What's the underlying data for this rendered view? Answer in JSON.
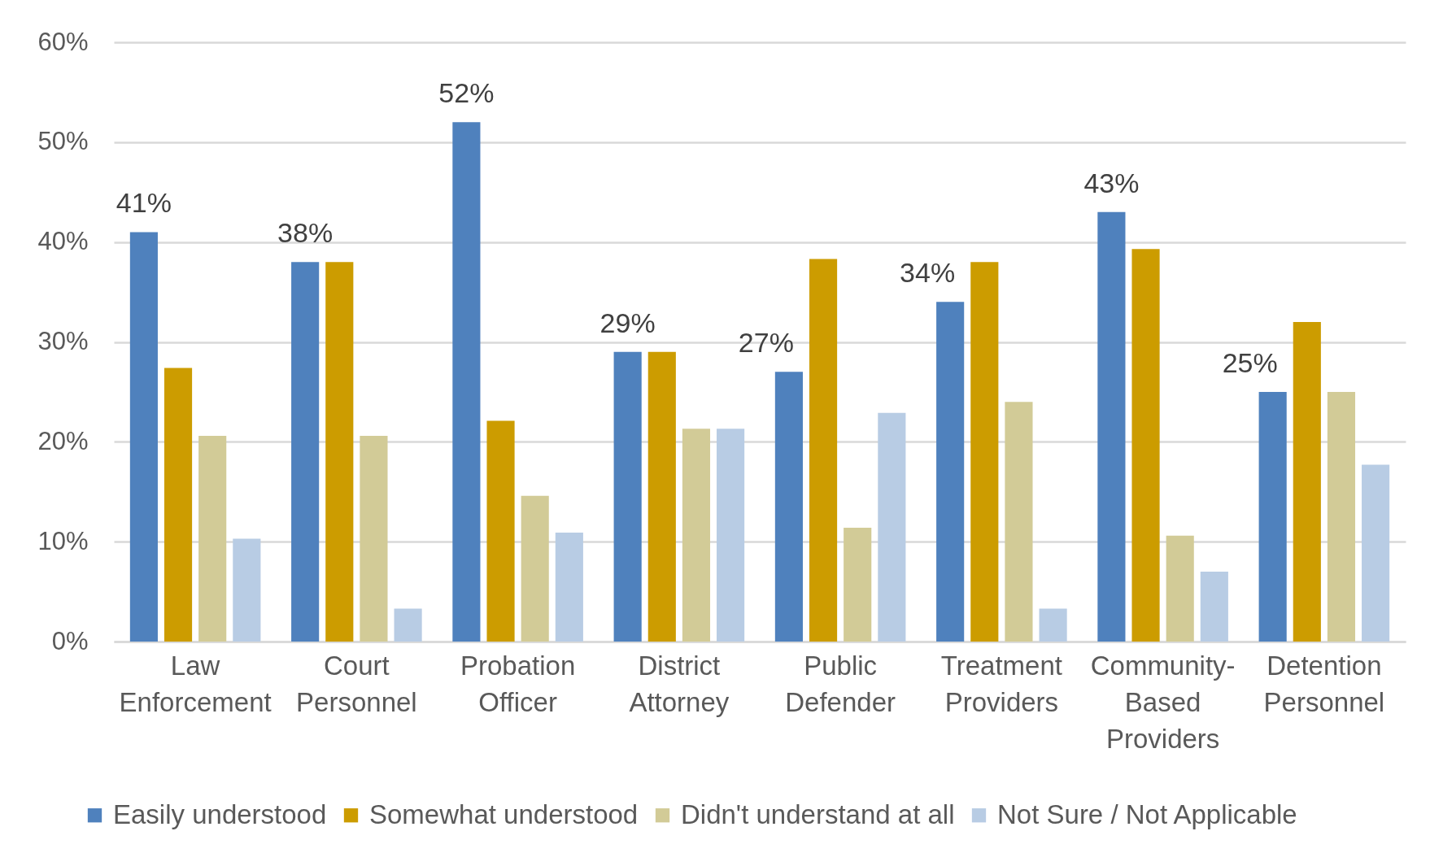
{
  "chart_data": {
    "type": "bar",
    "categories": [
      "Law Enforcement",
      "Court Personnel",
      "Probation Officer",
      "District Attorney",
      "Public Defender",
      "Treatment Providers",
      "Community-Based Providers",
      "Detention Personnel"
    ],
    "series": [
      {
        "name": "Easily understood",
        "color": "#4f81bd",
        "values": [
          41,
          38,
          52,
          29,
          27,
          34,
          43,
          25
        ],
        "value_labels": [
          "41%",
          "38%",
          "52%",
          "29%",
          "27%",
          "34%",
          "43%",
          "25%"
        ]
      },
      {
        "name": "Somewhat understood",
        "color": "#cc9c00",
        "values": [
          27.4,
          38,
          22.1,
          29,
          38.3,
          38,
          39.3,
          32
        ]
      },
      {
        "name": "Didn't understand at all",
        "color": "#d2cb97",
        "values": [
          20.6,
          20.6,
          14.6,
          21.3,
          11.4,
          24,
          10.6,
          25
        ]
      },
      {
        "name": "Not Sure / Not Applicable",
        "color": "#b8cce4",
        "values": [
          10.3,
          3.3,
          10.9,
          21.3,
          22.9,
          3.3,
          7,
          17.7
        ]
      }
    ],
    "ylim": [
      0,
      60
    ],
    "yticks": [
      {
        "value": 0,
        "label": "0%"
      },
      {
        "value": 10,
        "label": "10%"
      },
      {
        "value": 20,
        "label": "20%"
      },
      {
        "value": 30,
        "label": "30%"
      },
      {
        "value": 40,
        "label": "40%"
      },
      {
        "value": 50,
        "label": "50%"
      },
      {
        "value": 60,
        "label": "60%"
      }
    ],
    "grid": "y",
    "legend": "bottom"
  }
}
